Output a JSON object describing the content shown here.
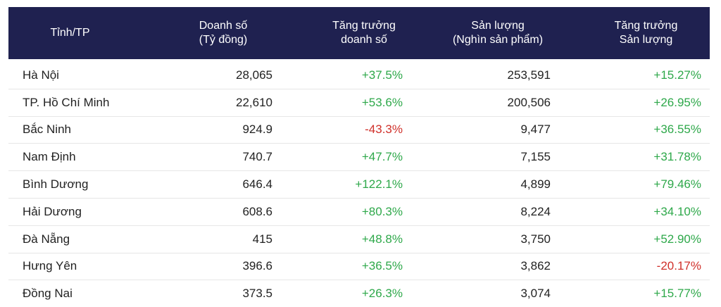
{
  "chart_data": {
    "type": "table",
    "columns": [
      [
        "Tỉnh/TP"
      ],
      [
        "Doanh số",
        "(Tỷ đồng)"
      ],
      [
        "Tăng trưởng",
        "doanh số"
      ],
      [
        "Sản lượng",
        "(Nghìn sản phẩm)"
      ],
      [
        "Tăng trưởng",
        "Sản lượng"
      ]
    ],
    "rows": [
      {
        "province": "Hà Nội",
        "revenue": "28,065",
        "revenue_growth": "+37.5%",
        "volume": "253,591",
        "volume_growth": "+15.27%"
      },
      {
        "province": "TP. Hồ Chí Minh",
        "revenue": "22,610",
        "revenue_growth": "+53.6%",
        "volume": "200,506",
        "volume_growth": "+26.95%"
      },
      {
        "province": "Bắc Ninh",
        "revenue": "924.9",
        "revenue_growth": "-43.3%",
        "volume": "9,477",
        "volume_growth": "+36.55%"
      },
      {
        "province": "Nam Định",
        "revenue": "740.7",
        "revenue_growth": "+47.7%",
        "volume": "7,155",
        "volume_growth": "+31.78%"
      },
      {
        "province": "Bình Dương",
        "revenue": "646.4",
        "revenue_growth": "+122.1%",
        "volume": "4,899",
        "volume_growth": "+79.46%"
      },
      {
        "province": "Hải Dương",
        "revenue": "608.6",
        "revenue_growth": "+80.3%",
        "volume": "8,224",
        "volume_growth": "+34.10%"
      },
      {
        "province": "Đà Nẵng",
        "revenue": "415",
        "revenue_growth": "+48.8%",
        "volume": "3,750",
        "volume_growth": "+52.90%"
      },
      {
        "province": "Hưng Yên",
        "revenue": "396.6",
        "revenue_growth": "+36.5%",
        "volume": "3,862",
        "volume_growth": "-20.17%"
      },
      {
        "province": "Đồng Nai",
        "revenue": "373.5",
        "revenue_growth": "+26.3%",
        "volume": "3,074",
        "volume_growth": "+15.77%"
      }
    ]
  },
  "colors": {
    "header_bg": "#1f2150",
    "positive": "#2ea84a",
    "negative": "#d0302a"
  }
}
